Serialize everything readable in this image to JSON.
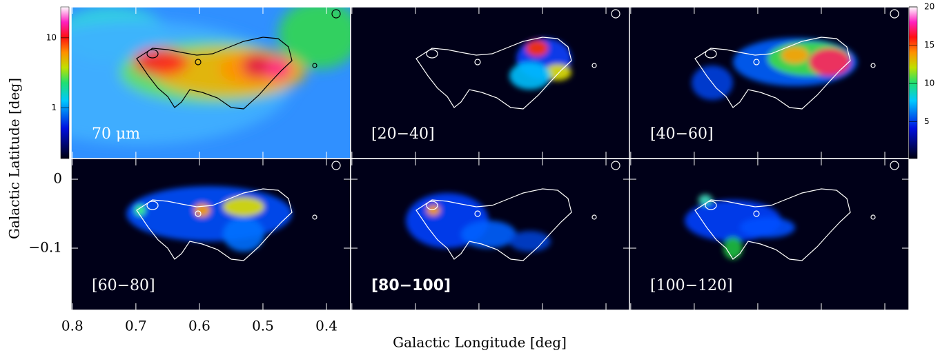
{
  "y_axis": {
    "label": "Galactic Latitude [deg]",
    "lim": [
      -0.19,
      0.03
    ],
    "ticks": [
      0,
      {
        "value": -0.1,
        "label": "−0.1"
      }
    ]
  },
  "x_axis": {
    "label": "Galactic Longitude [deg]",
    "lim": [
      0.802,
      0.362
    ],
    "ticks": [
      0.8,
      0.7,
      0.6,
      0.5,
      0.4
    ]
  },
  "left_colorbar": {
    "scale": "log",
    "lim": [
      0.19,
      27.6
    ],
    "ticks": [
      1,
      10
    ]
  },
  "right_colorbar": {
    "scale": "linear",
    "lim": [
      0.2,
      20
    ],
    "ticks": [
      5,
      10,
      15,
      20
    ]
  },
  "panels": [
    {
      "label": "70 μm"
    },
    {
      "label": "[20−40]"
    },
    {
      "label": "[40−60]"
    },
    {
      "label": "[60−80]"
    },
    {
      "label": "[80−100]"
    },
    {
      "label": "[100−120]"
    }
  ]
}
